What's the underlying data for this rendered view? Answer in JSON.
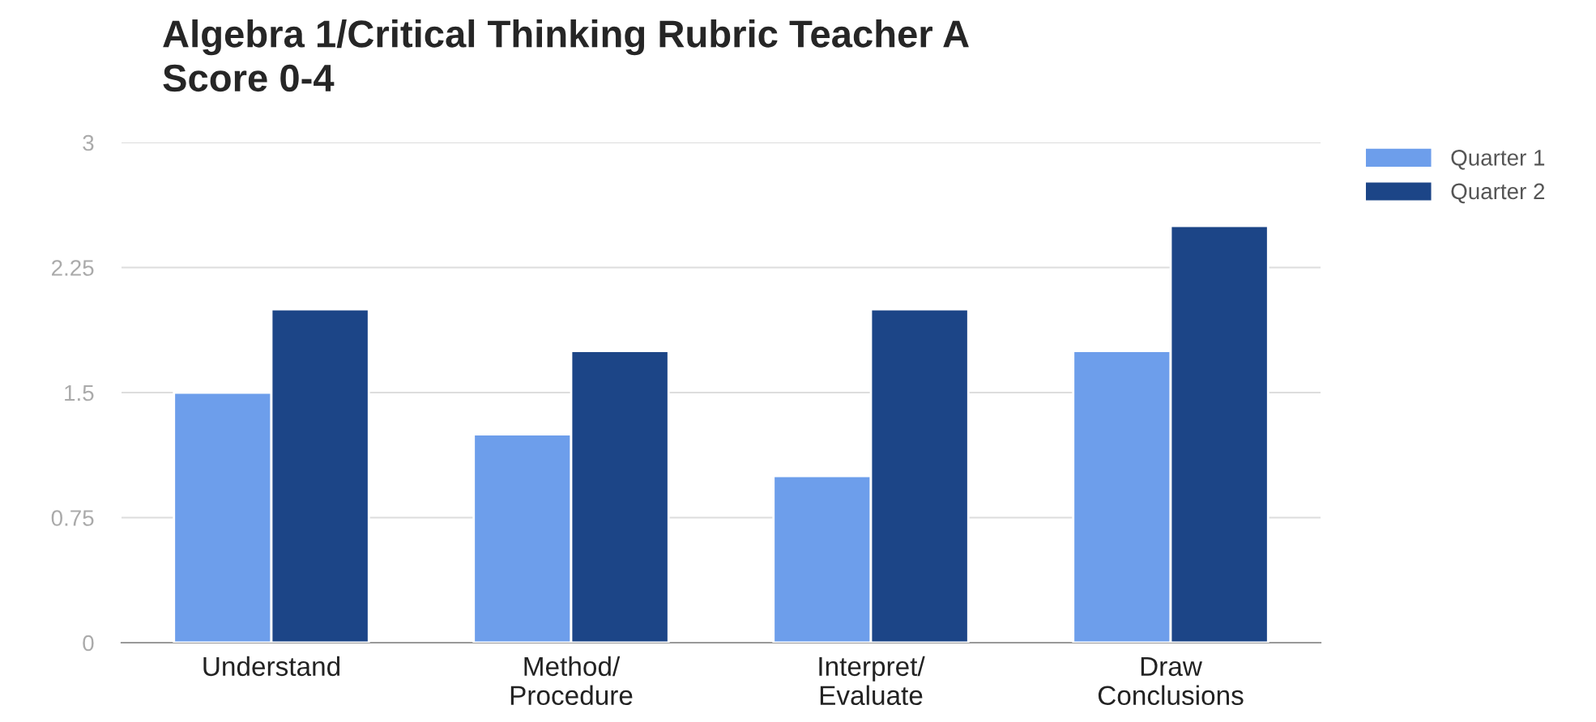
{
  "chart_data": {
    "type": "bar",
    "title": "Algebra 1/Critical Thinking Rubric Teacher A\nScore 0-4",
    "categories": [
      "Understand",
      "Method/\nProcedure",
      "Interpret/\nEvaluate",
      "Draw\nConclusions"
    ],
    "series": [
      {
        "name": "Quarter 1",
        "color": "#6d9eeb",
        "values": [
          1.5,
          1.25,
          1.0,
          1.75
        ]
      },
      {
        "name": "Quarter 2",
        "color": "#1c4587",
        "values": [
          2.0,
          1.75,
          2.0,
          2.5
        ]
      }
    ],
    "ylim": [
      0,
      3
    ],
    "yticks": [
      0,
      0.75,
      1.5,
      2.25,
      3
    ],
    "grid": "y",
    "legend": "top right"
  }
}
